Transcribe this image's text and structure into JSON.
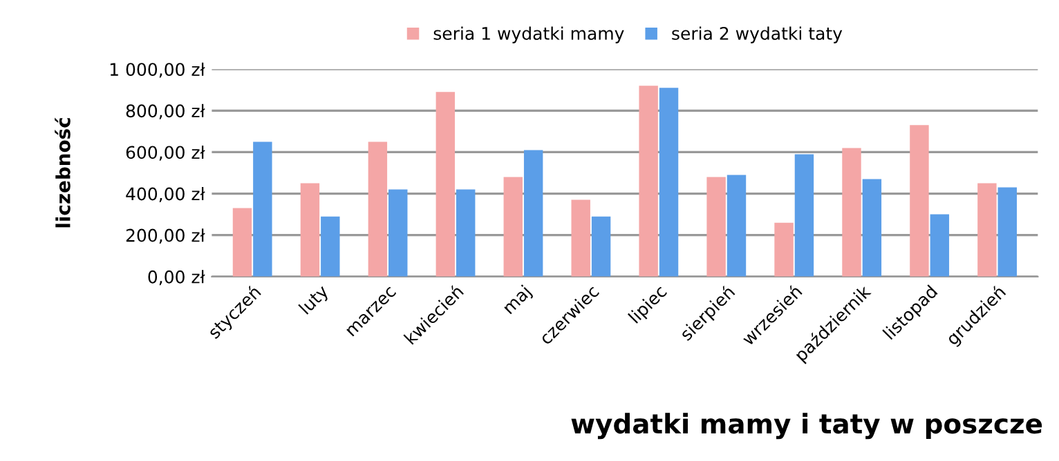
{
  "chart_data": {
    "type": "bar",
    "title": "wydatki mamy i taty w poszcze",
    "ylabel": "liczebność",
    "categories": [
      "styczeń",
      "luty",
      "marzec",
      "kwiecień",
      "maj",
      "czerwiec",
      "lipiec",
      "sierpień",
      "wrzesień",
      "październik",
      "listopad",
      "grudzień"
    ],
    "series": [
      {
        "name": "seria 1 wydatki mamy",
        "color": "#f4a6a6",
        "values": [
          330,
          450,
          650,
          890,
          480,
          370,
          920,
          480,
          260,
          620,
          730,
          450
        ]
      },
      {
        "name": "seria 2 wydatki taty",
        "color": "#5b9ee8",
        "values": [
          650,
          290,
          420,
          420,
          610,
          290,
          910,
          490,
          590,
          470,
          300,
          430
        ]
      }
    ],
    "ylim": [
      0,
      1000
    ],
    "yticks": [
      {
        "value": 0,
        "label": "0,00 zł"
      },
      {
        "value": 200,
        "label": "200,00 zł"
      },
      {
        "value": 400,
        "label": "400,00 zł"
      },
      {
        "value": 600,
        "label": "600,00 zł"
      },
      {
        "value": 800,
        "label": "800,00 zł"
      },
      {
        "value": 1000,
        "label": "1 000,00 zł"
      }
    ],
    "grid": "y",
    "legend": "top"
  }
}
